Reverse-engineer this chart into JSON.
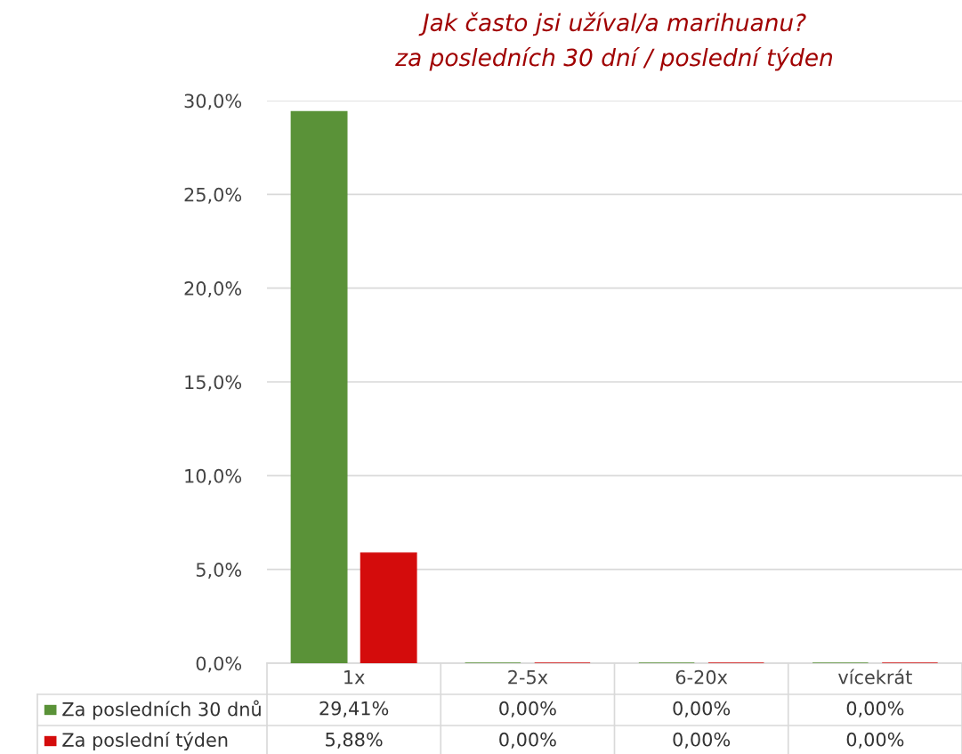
{
  "chart_data": {
    "type": "bar",
    "title": "Jak často jsi užíval/a marihuanu?\nza posledních 30 dní / poslední týden",
    "categories": [
      "1x",
      "2-5x",
      "6-20x",
      "vícekrát"
    ],
    "series": [
      {
        "name": "Za posledních 30 dnů",
        "color": "#5a9238",
        "values": [
          29.41,
          0,
          0,
          0
        ],
        "value_labels": [
          "29,41%",
          "0,00%",
          "0,00%",
          "0,00%"
        ]
      },
      {
        "name": "Za poslední týden",
        "color": "#d40c0c",
        "values": [
          5.88,
          0,
          0,
          0
        ],
        "value_labels": [
          "5,88%",
          "0,00%",
          "0,00%",
          "0,00%"
        ]
      }
    ],
    "ylim": [
      0,
      30
    ],
    "yticks": [
      {
        "value": 0,
        "label": "0,0%"
      },
      {
        "value": 5,
        "label": "5,0%"
      },
      {
        "value": 10,
        "label": "10,0%"
      },
      {
        "value": 15,
        "label": "15,0%"
      },
      {
        "value": 20,
        "label": "20,0%"
      },
      {
        "value": 25,
        "label": "25,0%"
      },
      {
        "value": 30,
        "label": "30,0%"
      }
    ],
    "grid": "y",
    "legend": "bottom"
  }
}
